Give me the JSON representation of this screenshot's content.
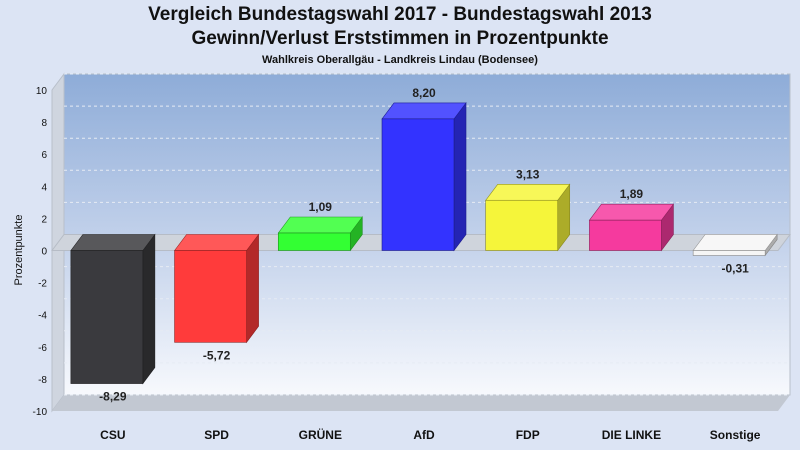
{
  "chart_data": {
    "type": "bar",
    "title": "Vergleich Bundestagswahl 2017 - Bundestagswahl 2013",
    "subtitle": "Gewinn/Verlust Erststimmen in Prozentpunkte",
    "caption": "Wahlkreis Oberallgäu - Landkreis Lindau (Bodensee)",
    "ylabel": "Prozentpunkte",
    "xlabel": "",
    "ylim": [
      -10,
      10
    ],
    "yticks": [
      10,
      8,
      6,
      4,
      2,
      0,
      -2,
      -4,
      -6,
      -8,
      -10
    ],
    "categories": [
      "CSU",
      "SPD",
      "GRÜNE",
      "AfD",
      "FDP",
      "DIE LINKE",
      "Sonstige"
    ],
    "values": [
      -8.29,
      -5.72,
      1.09,
      8.2,
      3.13,
      1.89,
      -0.31
    ],
    "value_labels": [
      "-8,29",
      "-5,72",
      "1,09",
      "8,20",
      "3,13",
      "1,89",
      "-0,31"
    ],
    "colors": [
      "#3a3a3e",
      "#ff3b3b",
      "#33ff33",
      "#3333ff",
      "#f5f53a",
      "#f53a9e",
      "#f5f5f5"
    ],
    "grid": true,
    "legend": "none"
  }
}
